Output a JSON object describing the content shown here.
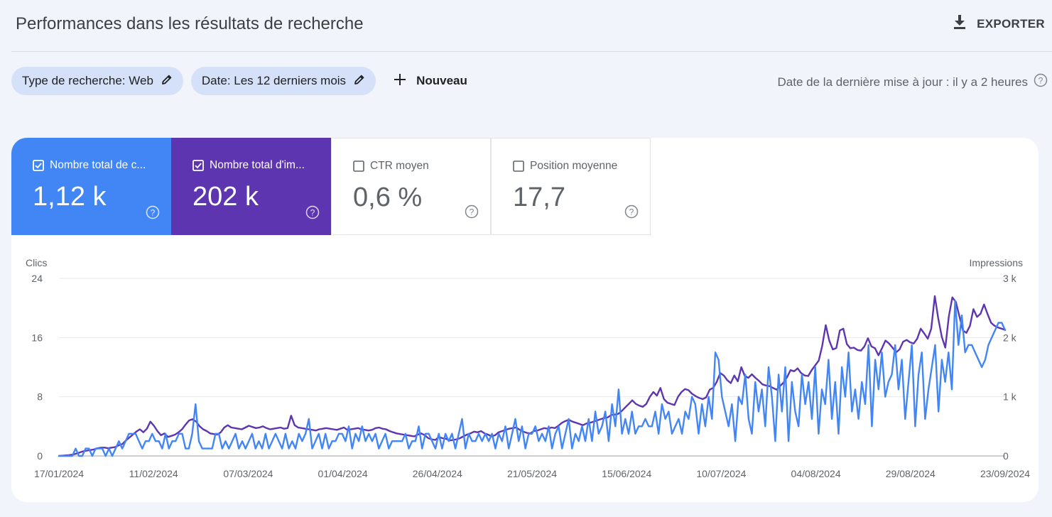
{
  "header": {
    "title": "Performances dans les résultats de recherche",
    "export_label": "EXPORTER"
  },
  "filters": {
    "search_type": "Type de recherche: Web",
    "date": "Date: Les 12 derniers mois",
    "new_label": "Nouveau"
  },
  "update_info": "Date de la dernière mise à jour : il y a 2 heures",
  "metrics": [
    {
      "label": "Nombre total de c...",
      "value": "1,12 k",
      "checked": true,
      "color": "#4285f4"
    },
    {
      "label": "Nombre total d'im...",
      "value": "202 k",
      "checked": true,
      "color": "#5e35b1"
    },
    {
      "label": "CTR moyen",
      "value": "0,6 %",
      "checked": false,
      "color": "#ffffff"
    },
    {
      "label": "Position moyenne",
      "value": "17,7",
      "checked": false,
      "color": "#ffffff"
    }
  ],
  "chart_data": {
    "type": "line",
    "y_left_label": "Clics",
    "y_right_label": "Impressions",
    "y_left_ticks": [
      "0",
      "8",
      "16",
      "24"
    ],
    "y_right_ticks": [
      "0",
      "1 k",
      "2 k",
      "3 k"
    ],
    "y_left_range": [
      0,
      24
    ],
    "y_right_range": [
      0,
      3000
    ],
    "x_ticks": [
      "17/01/2024",
      "11/02/2024",
      "07/03/2024",
      "01/04/2024",
      "26/04/2024",
      "21/05/2024",
      "15/06/2024",
      "10/07/2024",
      "04/08/2024",
      "29/08/2024",
      "23/09/2024"
    ],
    "grid": true,
    "series": [
      {
        "name": "Clics",
        "axis": "left",
        "color": "#4285f4",
        "values": [
          0,
          0,
          0,
          0,
          0,
          1,
          0,
          0,
          1,
          1,
          0,
          1,
          1,
          1,
          0,
          1,
          0,
          1,
          2,
          1,
          2,
          3,
          3,
          3,
          2,
          1,
          2,
          2,
          3,
          2,
          2,
          1,
          3,
          1,
          2,
          2,
          3,
          3,
          1,
          1,
          3,
          7,
          2,
          1,
          1,
          1,
          1,
          3,
          3,
          1,
          2,
          1,
          2,
          3,
          1,
          2,
          1,
          2,
          3,
          1,
          2,
          1,
          3,
          1,
          2,
          3,
          2,
          1,
          3,
          1,
          2,
          1,
          3,
          2,
          3,
          5,
          1,
          2,
          3,
          1,
          3,
          1,
          2,
          2,
          3,
          3,
          2,
          4,
          1,
          3,
          2,
          4,
          2,
          3,
          2,
          3,
          1,
          2,
          3,
          1,
          2,
          2,
          2,
          2,
          3,
          1,
          2,
          2,
          4,
          1,
          3,
          3,
          2,
          1,
          3,
          1,
          3,
          2,
          3,
          1,
          3,
          5,
          1,
          3,
          2,
          2,
          3,
          2,
          3,
          2,
          3,
          1,
          3,
          2,
          4,
          1,
          3,
          5,
          2,
          4,
          1,
          3,
          3,
          4,
          2,
          3,
          2,
          4,
          1,
          3,
          4,
          1,
          3,
          5,
          1,
          3,
          2,
          4,
          2,
          5,
          2,
          6,
          3,
          4,
          6,
          2,
          7,
          4,
          9,
          3,
          5,
          3,
          6,
          3,
          4,
          4,
          5,
          4,
          4,
          6,
          3,
          7,
          5,
          6,
          3,
          4,
          5,
          3,
          6,
          5,
          8,
          7,
          3,
          7,
          4,
          8,
          5,
          14,
          13,
          8,
          6,
          4,
          7,
          2,
          8,
          7,
          11,
          5,
          3,
          10,
          6,
          9,
          4,
          12,
          8,
          2,
          11,
          6,
          12,
          2,
          10,
          6,
          4,
          11,
          7,
          10,
          5,
          12,
          3,
          9,
          7,
          13,
          5,
          10,
          3,
          12,
          8,
          14,
          6,
          9,
          5,
          10,
          7,
          15,
          4,
          13,
          9,
          14,
          8,
          10,
          11,
          15,
          9,
          13,
          5,
          10,
          15,
          4,
          11,
          14,
          5,
          9,
          12,
          15,
          6,
          13,
          10,
          14,
          9,
          21,
          15,
          19,
          14,
          15,
          15,
          14,
          13,
          12,
          13,
          15,
          16,
          17,
          18,
          18,
          17
        ]
      },
      {
        "name": "Impressions",
        "axis": "right",
        "color": "#5e35b1",
        "values": [
          0,
          5,
          10,
          15,
          25,
          40,
          60,
          80,
          90,
          100,
          110,
          130,
          140,
          140,
          130,
          140,
          150,
          180,
          200,
          260,
          310,
          360,
          410,
          450,
          400,
          460,
          580,
          510,
          420,
          350,
          380,
          320,
          340,
          360,
          400,
          450,
          530,
          600,
          620,
          580,
          500,
          450,
          420,
          380,
          370,
          360,
          400,
          480,
          520,
          480,
          470,
          460,
          450,
          480,
          510,
          490,
          470,
          480,
          500,
          470,
          450,
          460,
          470,
          480,
          460,
          470,
          680,
          520,
          480,
          470,
          460,
          450,
          440,
          430,
          450,
          460,
          470,
          460,
          450,
          440,
          460,
          480,
          440,
          450,
          460,
          470,
          450,
          440,
          430,
          440,
          470,
          480,
          460,
          450,
          420,
          400,
          380,
          370,
          360,
          350,
          340,
          330,
          360,
          380,
          350,
          300,
          280,
          270,
          320,
          300,
          290,
          260,
          270,
          280,
          300,
          330,
          360,
          380,
          410,
          400,
          420,
          380,
          360,
          330,
          350,
          400,
          420,
          440,
          460,
          470,
          480,
          440,
          410,
          390,
          380,
          420,
          430,
          450,
          470,
          460,
          480,
          470,
          510,
          560,
          590,
          610,
          580,
          560,
          540,
          520,
          550,
          560,
          580,
          600,
          620,
          640,
          650,
          690,
          700,
          710,
          760,
          820,
          880,
          940,
          880,
          850,
          830,
          880,
          1000,
          1080,
          1020,
          1150,
          960,
          900,
          880,
          860,
          1000,
          1080,
          1130,
          1110,
          1050,
          1010,
          980,
          960,
          990,
          1120,
          1150,
          1250,
          1400,
          1360,
          1280,
          1230,
          1360,
          1260,
          1500,
          1350,
          1320,
          1380,
          1320,
          1270,
          1210,
          1190,
          1180,
          1150,
          1120,
          1180,
          1240,
          1330,
          1450,
          1430,
          1480,
          1400,
          1360,
          1350,
          1450,
          1530,
          1610,
          1860,
          2210,
          1950,
          1800,
          1820,
          2120,
          2150,
          1890,
          1820,
          1830,
          1790,
          1780,
          1850,
          1990,
          1850,
          1820,
          1700,
          1820,
          1950,
          1900,
          1830,
          1750,
          1800,
          1930,
          1960,
          1920,
          1900,
          1980,
          2150,
          2070,
          1980,
          2150,
          2700,
          2320,
          2010,
          1830,
          2360,
          2680,
          2600,
          2360,
          2120,
          2080,
          2200,
          2480,
          2350,
          2400,
          2560,
          2400,
          2250,
          2200,
          2170,
          2150,
          2130
        ]
      }
    ]
  }
}
